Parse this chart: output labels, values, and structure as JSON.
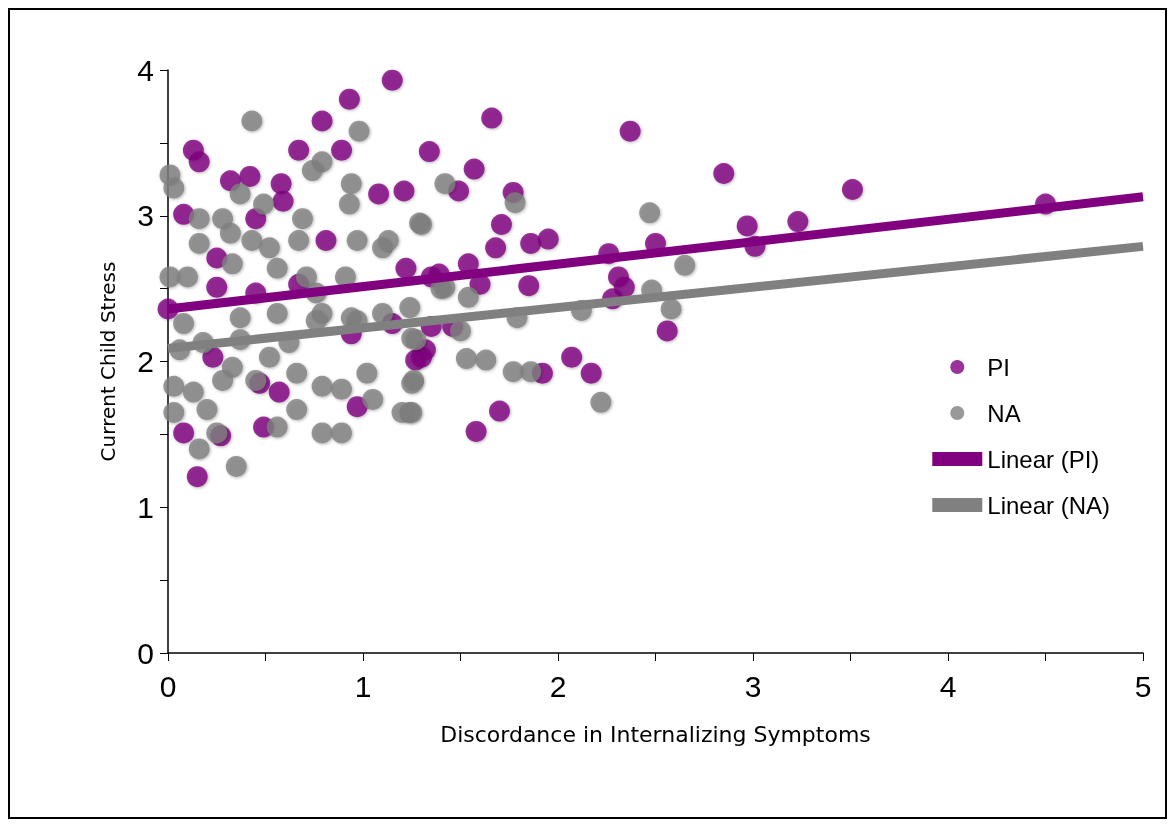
{
  "chart_data": {
    "type": "scatter",
    "xlabel": "Discordance in Internalizing Symptoms",
    "ylabel": "Current Child Stress",
    "xlim": [
      0,
      5
    ],
    "ylim": [
      0,
      4
    ],
    "xticks": [
      0,
      {
        "value": 0.5,
        "label": null
      },
      1,
      {
        "value": 1.5,
        "label": null
      },
      2,
      {
        "value": 2.5,
        "label": null
      },
      3,
      {
        "value": 3.5,
        "label": null
      },
      4,
      {
        "value": 4.5,
        "label": null
      },
      5
    ],
    "yticks": [
      0,
      {
        "value": 0.5,
        "label": null
      },
      1,
      {
        "value": 1.5,
        "label": null
      },
      2,
      {
        "value": 2.5,
        "label": null
      },
      3,
      {
        "value": 3.5,
        "label": null
      },
      4
    ],
    "grid": false,
    "legend": "right",
    "marker": "circle",
    "series": [
      {
        "name": "PI",
        "color": "#800080",
        "x": [
          1.15,
          1.66,
          2.37,
          1.34,
          1.57,
          1.49,
          1.77,
          2.85,
          1.21,
          1.71,
          2.97,
          3.23,
          1.86,
          1.95,
          1.68,
          2.5,
          3.01,
          2.26,
          1.54,
          1.39,
          2.31,
          1.6,
          1.85,
          2.34,
          2.28,
          2.56,
          1.46,
          1.32,
          2.07,
          1.92,
          2.17,
          1.27,
          1.7,
          1.58,
          3.51,
          4.5,
          0.93,
          0.79,
          0.13,
          0.16,
          0.67,
          0.89,
          0.32,
          0.42,
          0.58,
          1.08,
          0.08,
          0.45,
          0.59,
          0.81,
          0.25,
          0.67,
          1.22,
          1.35,
          0.0,
          0.25,
          0.45,
          0.94,
          1.35,
          1.15,
          0.23,
          1.3,
          0.57,
          0.97,
          0.08,
          0.27,
          0.15,
          0.49,
          0.47
        ],
        "values": [
          3.93,
          3.67,
          3.58,
          3.44,
          3.32,
          3.17,
          3.16,
          3.29,
          3.17,
          2.94,
          2.93,
          2.96,
          2.81,
          2.84,
          2.78,
          2.81,
          2.79,
          2.74,
          2.67,
          2.6,
          2.58,
          2.53,
          2.52,
          2.51,
          2.43,
          2.21,
          2.24,
          2.08,
          2.03,
          1.92,
          1.92,
          2.01,
          1.66,
          1.52,
          3.18,
          3.08,
          3.8,
          3.65,
          3.45,
          3.37,
          3.45,
          3.45,
          3.24,
          3.27,
          3.22,
          3.15,
          3.01,
          2.98,
          3.1,
          2.83,
          2.71,
          2.53,
          2.64,
          2.58,
          2.36,
          2.51,
          2.47,
          2.19,
          2.24,
          2.26,
          2.03,
          2.03,
          1.79,
          1.69,
          1.51,
          1.49,
          1.21,
          1.55,
          1.85
        ]
      },
      {
        "name": "NA",
        "color": "#808080",
        "x": [
          1.42,
          1.78,
          2.47,
          1.29,
          2.65,
          2.48,
          2.58,
          1.54,
          1.4,
          1.79,
          2.12,
          1.5,
          1.25,
          1.53,
          1.63,
          1.77,
          1.86,
          1.26,
          2.22,
          1.24,
          0.43,
          0.98,
          0.79,
          0.74,
          0.01,
          0.03,
          0.37,
          0.49,
          0.94,
          0.93,
          0.16,
          0.28,
          0.69,
          1.3,
          0.16,
          0.32,
          0.43,
          0.52,
          0.67,
          0.97,
          1.1,
          1.13,
          0.33,
          0.01,
          0.1,
          0.56,
          0.71,
          0.91,
          1.42,
          0.76,
          0.79,
          0.94,
          1.1,
          1.24,
          0.08,
          0.37,
          0.56,
          0.06,
          0.18,
          0.37,
          0.33,
          0.52,
          0.62,
          0.76,
          0.97,
          1.27,
          0.03,
          0.13,
          0.28,
          0.45,
          0.66,
          0.79,
          0.89,
          1.02,
          1.05,
          1.25,
          1.2,
          1.25,
          0.03,
          0.2,
          0.25,
          0.16,
          0.35,
          0.56,
          0.79,
          0.89,
          0.66
        ],
        "values": [
          3.22,
          3.09,
          3.02,
          2.95,
          2.66,
          2.49,
          2.36,
          2.44,
          2.5,
          2.3,
          2.35,
          2.21,
          2.16,
          2.02,
          2.01,
          1.93,
          1.93,
          1.87,
          1.72,
          1.65,
          3.65,
          3.58,
          3.37,
          3.31,
          3.28,
          3.19,
          3.15,
          3.08,
          3.22,
          3.08,
          2.98,
          2.98,
          2.98,
          2.94,
          2.81,
          2.88,
          2.83,
          2.78,
          2.83,
          2.83,
          2.78,
          2.83,
          2.67,
          2.58,
          2.58,
          2.64,
          2.58,
          2.58,
          2.51,
          2.47,
          2.33,
          2.3,
          2.33,
          2.37,
          2.26,
          2.3,
          2.33,
          2.08,
          2.13,
          2.15,
          1.96,
          2.03,
          2.13,
          2.28,
          2.28,
          2.15,
          1.83,
          1.79,
          1.87,
          1.87,
          1.92,
          1.83,
          1.81,
          1.92,
          1.74,
          1.85,
          1.65,
          1.65,
          1.65,
          1.67,
          1.51,
          1.4,
          1.28,
          1.55,
          1.51,
          1.51,
          1.67
        ]
      },
      {
        "name": "Linear (PI)",
        "type": "line",
        "color": "#800080",
        "marker": "none",
        "x": [
          0,
          5
        ],
        "values": [
          2.36,
          3.13
        ]
      },
      {
        "name": "Linear (NA)",
        "type": "line",
        "color": "#808080",
        "marker": "none",
        "x": [
          0,
          5
        ],
        "values": [
          2.09,
          2.79
        ]
      }
    ]
  }
}
